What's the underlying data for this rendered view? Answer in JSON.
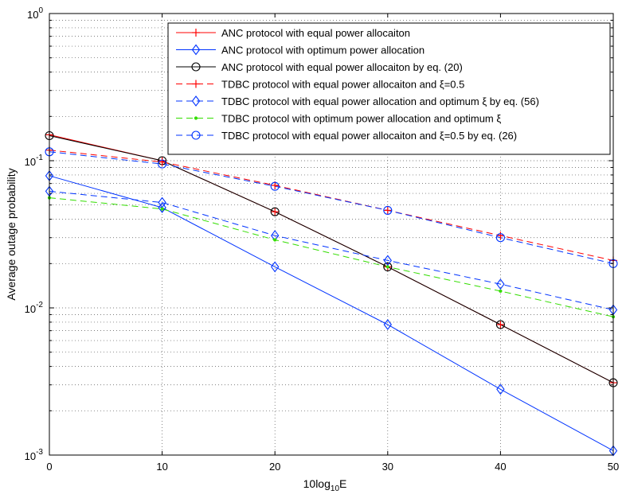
{
  "chart_data": {
    "type": "line",
    "yscale": "log",
    "xlabel": "10log10E",
    "xlabel_parts": {
      "base": "10log",
      "sub": "10",
      "tail": "E"
    },
    "ylabel": "Average outage probability",
    "xlim": [
      0,
      50
    ],
    "ylim": [
      0.001,
      1
    ],
    "x_ticks": [
      "0",
      "10",
      "20",
      "30",
      "40",
      "50"
    ],
    "y_ticks": [
      {
        "mantissa": "10",
        "exponent": "0",
        "value": 1
      },
      {
        "mantissa": "10",
        "exponent": "-1",
        "value": 0.1
      },
      {
        "mantissa": "10",
        "exponent": "-2",
        "value": 0.01
      },
      {
        "mantissa": "10",
        "exponent": "-3",
        "value": 0.001
      }
    ],
    "grid": true,
    "legend_position": "top-right",
    "series": [
      {
        "name": "ANC protocol with equal power allocaiton",
        "color": "#ff0000",
        "dash": "solid",
        "marker": "plus",
        "x": [
          0,
          10,
          20,
          30,
          40,
          50
        ],
        "y": [
          0.15,
          0.1,
          0.045,
          0.019,
          0.0077,
          0.0031
        ]
      },
      {
        "name": "ANC protocol with optimum power allocation",
        "color": "#0033ff",
        "dash": "solid",
        "marker": "diamond",
        "x": [
          0,
          10,
          20,
          30,
          40,
          50
        ],
        "y": [
          0.079,
          0.048,
          0.019,
          0.0077,
          0.0028,
          0.00107
        ]
      },
      {
        "name": "ANC protocol with equal power allocaiton by eq. (20)",
        "color": "#000000",
        "dash": "solid",
        "marker": "circle",
        "x": [
          0,
          10,
          20,
          30,
          40,
          50
        ],
        "y": [
          0.148,
          0.1,
          0.045,
          0.019,
          0.0077,
          0.0031
        ]
      },
      {
        "name": "TDBC protocol with equal power allocaiton and ξ=0.5",
        "color": "#ff0000",
        "dash": "dashed",
        "marker": "plus",
        "x": [
          0,
          10,
          20,
          30,
          40,
          50
        ],
        "y": [
          0.118,
          0.098,
          0.068,
          0.046,
          0.031,
          0.021
        ]
      },
      {
        "name": "TDBC protocol with equal power allocation and optimum ξ by eq. (56)",
        "color": "#0033ff",
        "dash": "dashed",
        "marker": "diamond",
        "x": [
          0,
          10,
          20,
          30,
          40,
          50
        ],
        "y": [
          0.062,
          0.052,
          0.031,
          0.021,
          0.0145,
          0.0097
        ]
      },
      {
        "name": "TDBC protocol with optimum power allocation and optimum ξ",
        "color": "#33dd00",
        "dash": "dashed",
        "marker": "dot",
        "x": [
          0,
          10,
          20,
          30,
          40,
          50
        ],
        "y": [
          0.056,
          0.047,
          0.029,
          0.019,
          0.013,
          0.0087
        ]
      },
      {
        "name": "TDBC protocol with equal power allocaiton and ξ=0.5 by eq. (26)",
        "color": "#0033ff",
        "dash": "dashed",
        "marker": "circle",
        "x": [
          0,
          10,
          20,
          30,
          40,
          50
        ],
        "y": [
          0.115,
          0.095,
          0.067,
          0.046,
          0.03,
          0.02
        ]
      }
    ]
  }
}
